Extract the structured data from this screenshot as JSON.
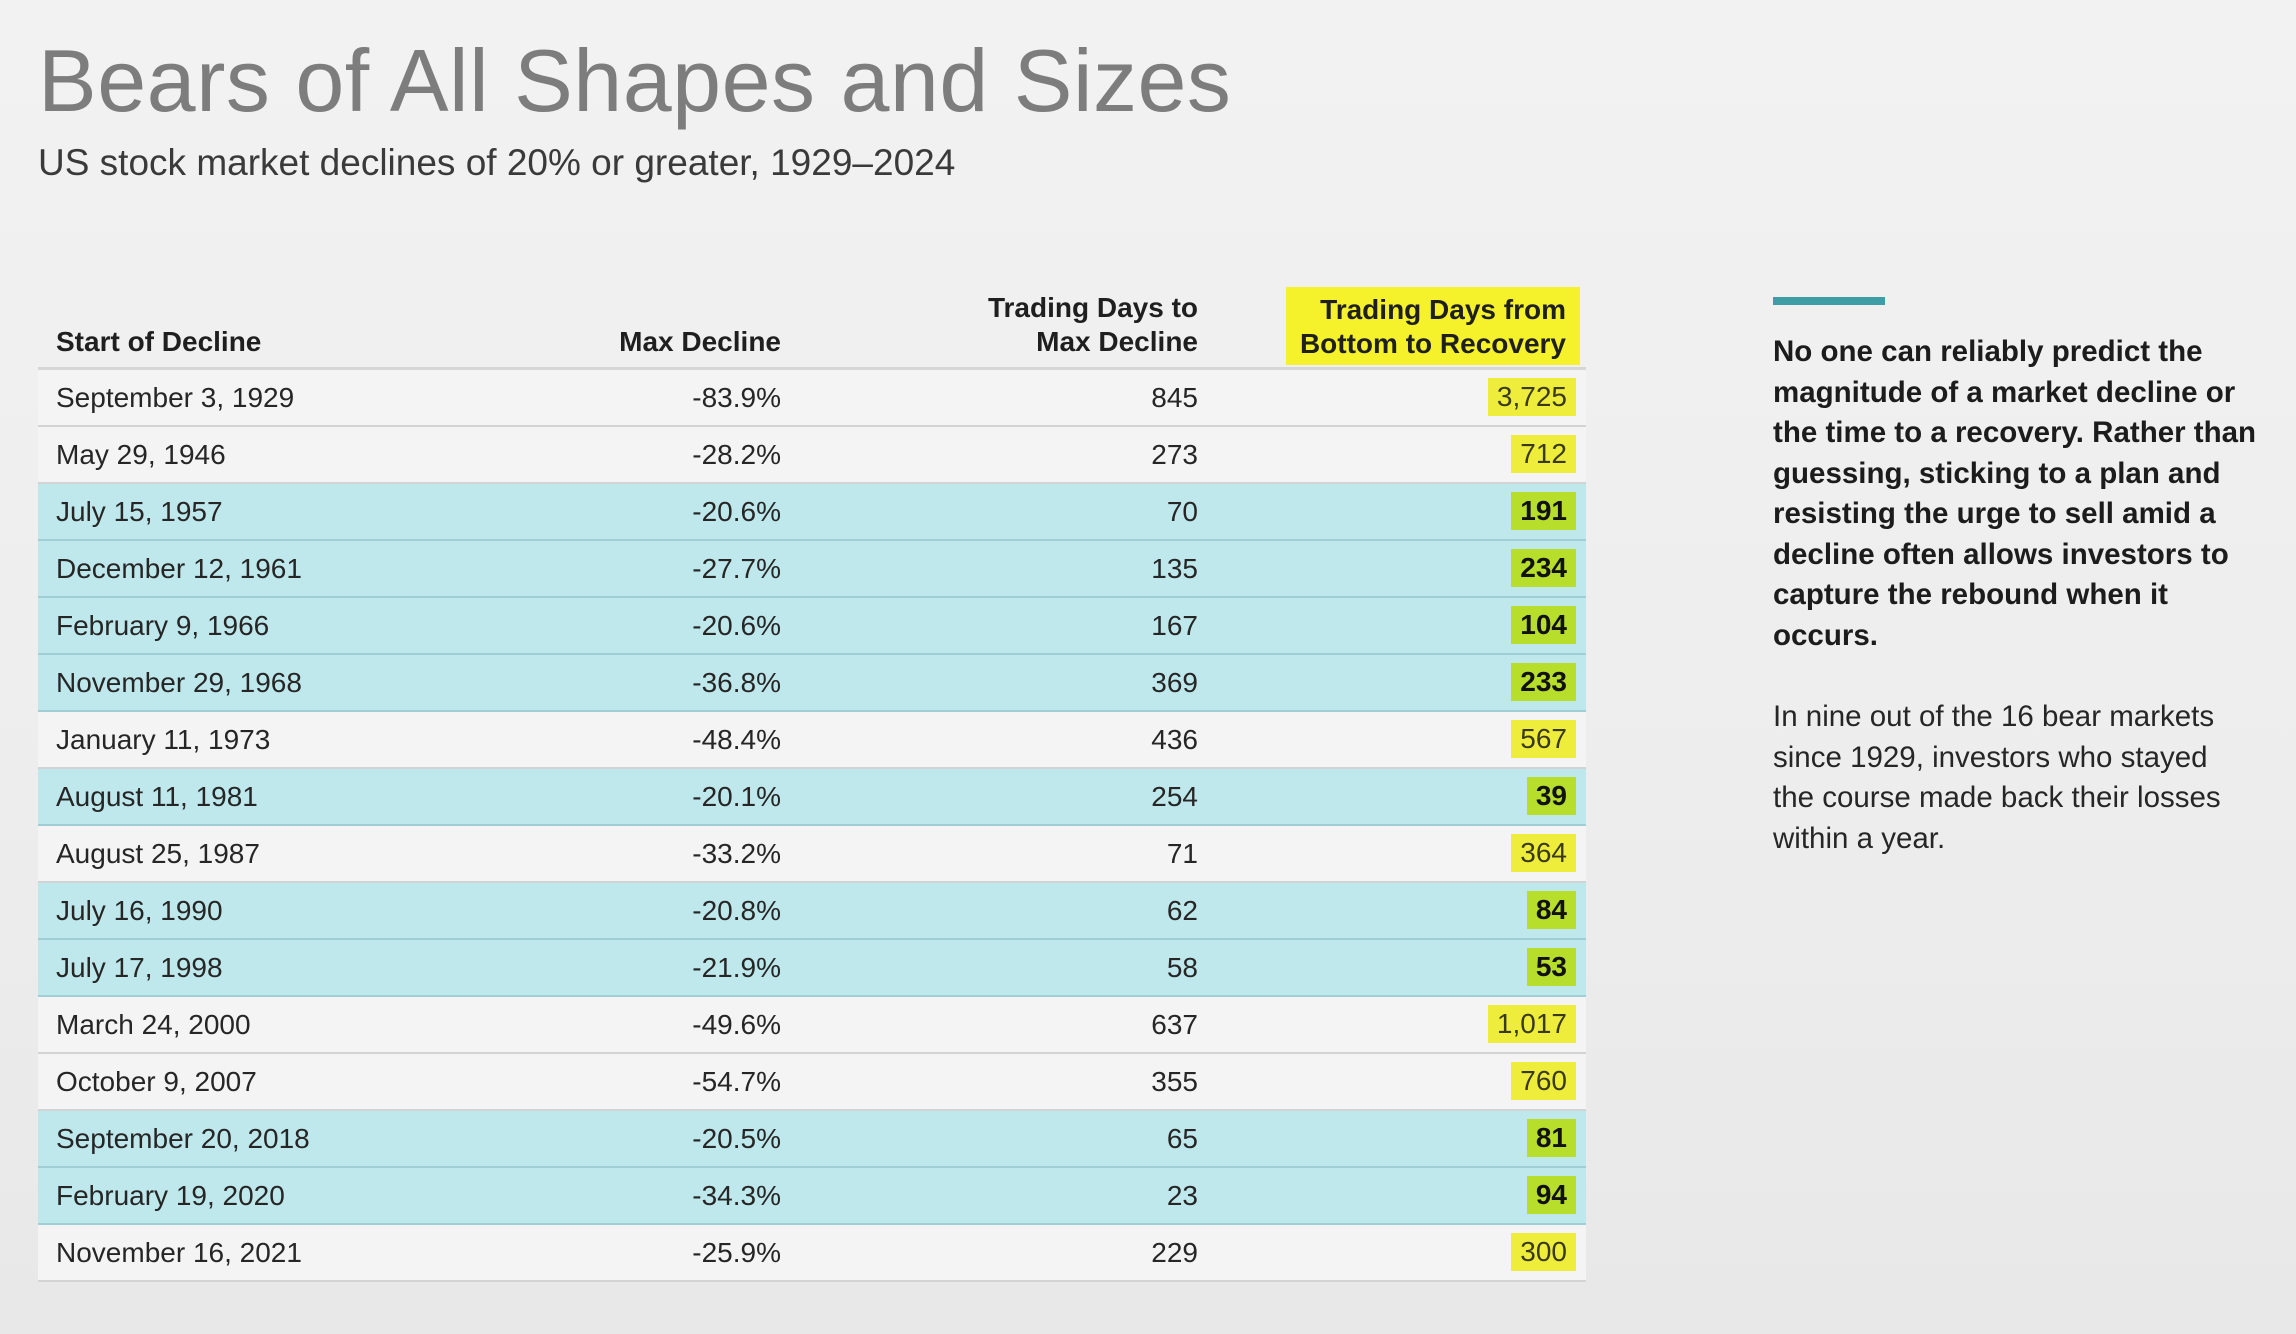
{
  "header": {
    "title": "Bears of All Shapes and Sizes",
    "subtitle": "US stock market declines of 20% or greater, 1929–2024"
  },
  "table": {
    "columns": {
      "start": "Start of Decline",
      "decline": "Max Decline",
      "days_line1": "Trading Days to",
      "days_line2": "Max Decline",
      "recovery_line1": "Trading Days from",
      "recovery_line2": "Bottom to Recovery"
    },
    "colors": {
      "header_highlight": "#f5f22b",
      "teal_row": "#bfe8ec",
      "yellow_badge": "#eeed3c",
      "green_badge": "#b7de2b",
      "accent": "#3d9ea6"
    },
    "rows": [
      {
        "start": "September 3, 1929",
        "decline": "-83.9%",
        "days": "845",
        "recovery": "3,725",
        "row_style": "white",
        "badge": "yellow"
      },
      {
        "start": "May 29, 1946",
        "decline": "-28.2%",
        "days": "273",
        "recovery": "712",
        "row_style": "white",
        "badge": "yellow"
      },
      {
        "start": "July 15, 1957",
        "decline": "-20.6%",
        "days": "70",
        "recovery": "191",
        "row_style": "teal",
        "badge": "green"
      },
      {
        "start": "December 12, 1961",
        "decline": "-27.7%",
        "days": "135",
        "recovery": "234",
        "row_style": "teal",
        "badge": "green"
      },
      {
        "start": "February 9, 1966",
        "decline": "-20.6%",
        "days": "167",
        "recovery": "104",
        "row_style": "teal",
        "badge": "green"
      },
      {
        "start": "November 29, 1968",
        "decline": "-36.8%",
        "days": "369",
        "recovery": "233",
        "row_style": "teal",
        "badge": "green"
      },
      {
        "start": "January 11, 1973",
        "decline": "-48.4%",
        "days": "436",
        "recovery": "567",
        "row_style": "white",
        "badge": "yellow"
      },
      {
        "start": "August 11, 1981",
        "decline": "-20.1%",
        "days": "254",
        "recovery": "39",
        "row_style": "teal",
        "badge": "green"
      },
      {
        "start": "August 25, 1987",
        "decline": "-33.2%",
        "days": "71",
        "recovery": "364",
        "row_style": "white",
        "badge": "yellow"
      },
      {
        "start": "July 16, 1990",
        "decline": "-20.8%",
        "days": "62",
        "recovery": "84",
        "row_style": "teal",
        "badge": "green"
      },
      {
        "start": "July 17, 1998",
        "decline": "-21.9%",
        "days": "58",
        "recovery": "53",
        "row_style": "teal",
        "badge": "green"
      },
      {
        "start": "March 24, 2000",
        "decline": "-49.6%",
        "days": "637",
        "recovery": "1,017",
        "row_style": "white",
        "badge": "yellow"
      },
      {
        "start": "October 9, 2007",
        "decline": "-54.7%",
        "days": "355",
        "recovery": "760",
        "row_style": "white",
        "badge": "yellow"
      },
      {
        "start": "September 20, 2018",
        "decline": "-20.5%",
        "days": "65",
        "recovery": "81",
        "row_style": "teal",
        "badge": "green"
      },
      {
        "start": "February 19, 2020",
        "decline": "-34.3%",
        "days": "23",
        "recovery": "94",
        "row_style": "teal",
        "badge": "green"
      },
      {
        "start": "November 16, 2021",
        "decline": "-25.9%",
        "days": "229",
        "recovery": "300",
        "row_style": "white",
        "badge": "yellow"
      }
    ]
  },
  "sidebar": {
    "bold_text": "No one can reliably predict the magnitude of a market decline or the time to a recovery. Rather than guessing, sticking to a plan and resisting the urge to sell amid a decline often allows investors to capture the rebound when it occurs.",
    "body_text": "In nine out of the 16 bear markets since 1929, investors who stayed the course made back their losses within a year."
  },
  "chart_data": {
    "type": "table",
    "title": "Bears of All Shapes and Sizes",
    "subtitle": "US stock market declines of 20% or greater, 1929–2024",
    "columns": [
      "Start of Decline",
      "Max Decline",
      "Trading Days to Max Decline",
      "Trading Days from Bottom to Recovery"
    ],
    "rows": [
      [
        "September 3, 1929",
        -83.9,
        845,
        3725
      ],
      [
        "May 29, 1946",
        -28.2,
        273,
        712
      ],
      [
        "July 15, 1957",
        -20.6,
        70,
        191
      ],
      [
        "December 12, 1961",
        -27.7,
        135,
        234
      ],
      [
        "February 9, 1966",
        -20.6,
        167,
        104
      ],
      [
        "November 29, 1968",
        -36.8,
        369,
        233
      ],
      [
        "January 11, 1973",
        -48.4,
        436,
        567
      ],
      [
        "August 11, 1981",
        -20.1,
        254,
        39
      ],
      [
        "August 25, 1987",
        -33.2,
        71,
        364
      ],
      [
        "July 16, 1990",
        -20.8,
        62,
        84
      ],
      [
        "July 17, 1998",
        -21.9,
        58,
        53
      ],
      [
        "March 24, 2000",
        -49.6,
        637,
        1017
      ],
      [
        "October 9, 2007",
        -54.7,
        355,
        760
      ],
      [
        "September 20, 2018",
        -20.5,
        65,
        81
      ],
      [
        "February 19, 2020",
        -34.3,
        23,
        94
      ],
      [
        "November 16, 2021",
        -25.9,
        229,
        300
      ]
    ]
  }
}
